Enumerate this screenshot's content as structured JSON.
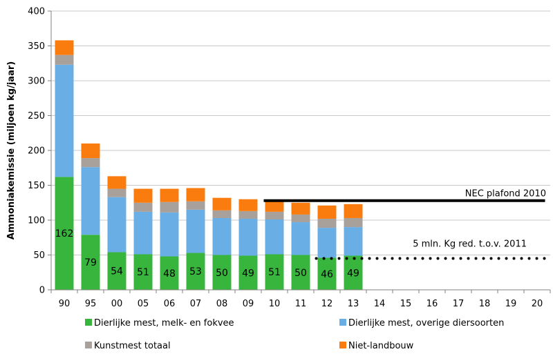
{
  "chart_data": {
    "type": "bar",
    "stacked": true,
    "title": "",
    "xlabel": "",
    "ylabel": "Ammoniakemissie (miljoen kg/jaar)",
    "ylim": [
      0,
      400
    ],
    "yticks": [
      0,
      50,
      100,
      150,
      200,
      250,
      300,
      350,
      400
    ],
    "grid": true,
    "legend_position": "bottom",
    "categories": [
      "90",
      "95",
      "00",
      "05",
      "06",
      "07",
      "08",
      "09",
      "10",
      "11",
      "12",
      "13",
      "14",
      "15",
      "16",
      "17",
      "18",
      "19",
      "20"
    ],
    "series": [
      {
        "name": "Dierlijke mest, melk- en fokvee",
        "color": "#38b53d",
        "values": [
          162,
          79,
          54,
          51,
          48,
          53,
          50,
          49,
          51,
          50,
          46,
          49,
          null,
          null,
          null,
          null,
          null,
          null,
          null
        ],
        "show_labels": true
      },
      {
        "name": "Dierlijke mest, overige diersoorten",
        "color": "#6aaee6",
        "values": [
          161,
          97,
          79,
          61,
          63,
          62,
          53,
          53,
          50,
          47,
          43,
          41,
          null,
          null,
          null,
          null,
          null,
          null,
          null
        ]
      },
      {
        "name": "Kunstmest totaal",
        "color": "#a8a09a",
        "values": [
          14,
          13,
          12,
          13,
          15,
          12,
          11,
          11,
          11,
          11,
          13,
          13,
          null,
          null,
          null,
          null,
          null,
          null,
          null
        ]
      },
      {
        "name": "Niet-landbouw",
        "color": "#fa7c0f",
        "values": [
          21,
          21,
          18,
          20,
          19,
          19,
          18,
          17,
          17,
          17,
          19,
          20,
          null,
          null,
          null,
          null,
          null,
          null,
          null
        ]
      }
    ],
    "reference_lines": [
      {
        "label": "NEC plafond 2010",
        "value": 128,
        "from": "10",
        "to": "20",
        "style": "solid",
        "color": "#000000"
      },
      {
        "label": "5 mln. Kg red. t.o.v. 2011",
        "value": 45,
        "from": "12",
        "to": "20",
        "style": "dotted",
        "color": "#000000"
      }
    ]
  }
}
